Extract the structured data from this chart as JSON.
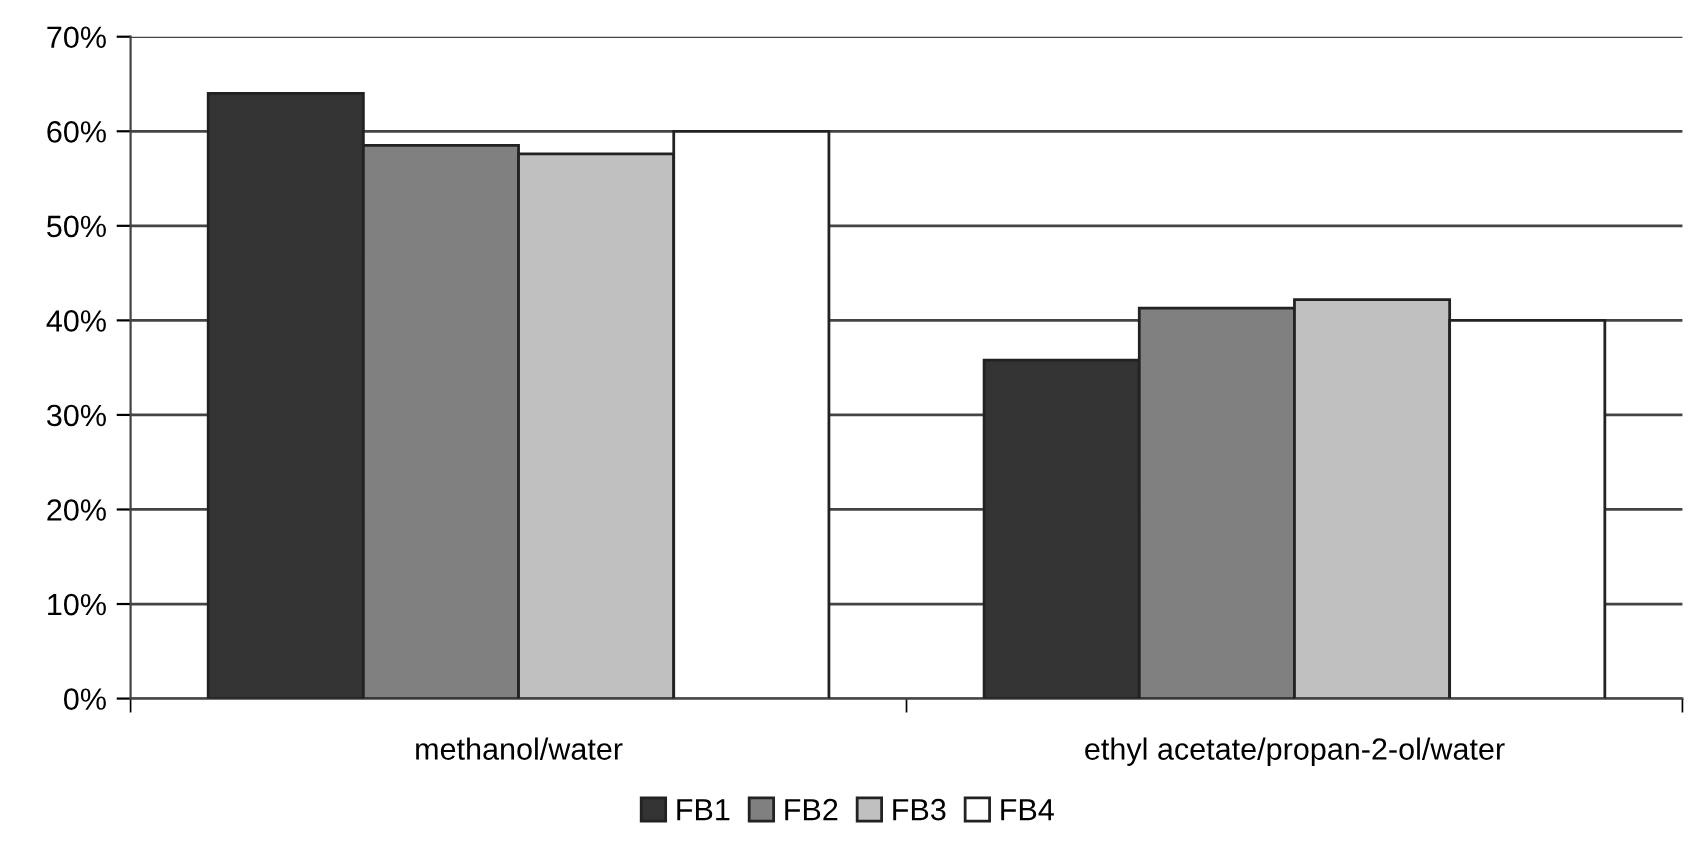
{
  "chart_data": {
    "type": "bar",
    "categories": [
      "methanol/water",
      "ethyl acetate/propan-2-ol/water"
    ],
    "series": [
      {
        "name": "FB1",
        "color": "#333333",
        "values": [
          64,
          35.8
        ]
      },
      {
        "name": "FB2",
        "color": "#808080",
        "values": [
          58.5,
          41.3
        ]
      },
      {
        "name": "FB3",
        "color": "#c0c0c0",
        "values": [
          57.6,
          42.2
        ]
      },
      {
        "name": "FB4",
        "color": "#ffffff",
        "values": [
          60,
          40
        ]
      }
    ],
    "ylim": [
      0,
      70
    ],
    "yticks": [
      {
        "value": 0,
        "label": "0%"
      },
      {
        "value": 10,
        "label": "10%"
      },
      {
        "value": 20,
        "label": "20%"
      },
      {
        "value": 30,
        "label": "30%"
      },
      {
        "value": 40,
        "label": "40%"
      },
      {
        "value": 50,
        "label": "50%"
      },
      {
        "value": 60,
        "label": "60%"
      },
      {
        "value": 70,
        "label": "70%"
      }
    ],
    "grid": "y",
    "legend": "bottom"
  }
}
